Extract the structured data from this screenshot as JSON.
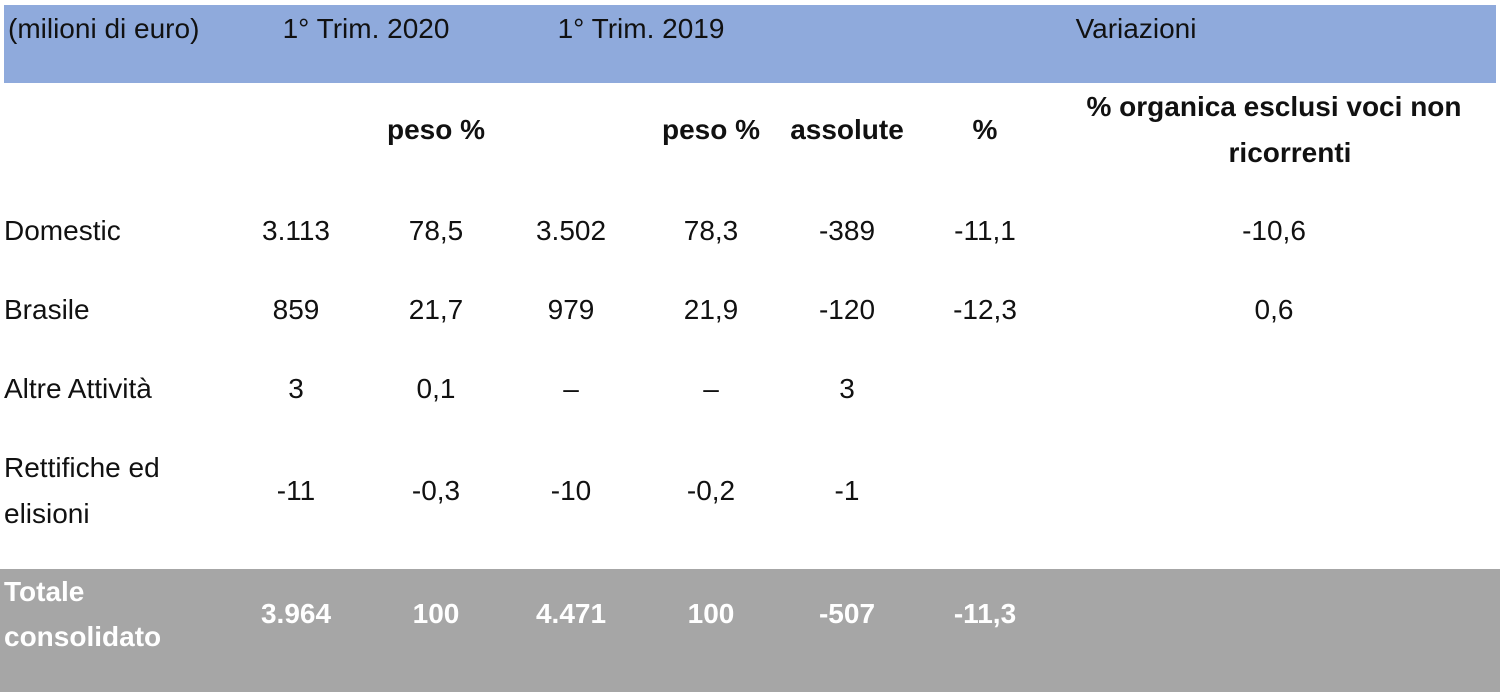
{
  "header": {
    "unit": "(milioni di euro)",
    "period1": "1° Trim. 2020",
    "period2": "1° Trim. 2019",
    "changes": "Variazioni"
  },
  "subheader": {
    "weight1": "peso %",
    "weight2": "peso %",
    "absolute": "assolute",
    "percent": "%",
    "organic_line1": "% organica esclusi voci non",
    "organic_line2": "ricorrenti"
  },
  "rows": [
    {
      "label_line1": "Domestic",
      "label_line2": "",
      "v2020": "3.113",
      "w2020": "78,5",
      "v2019": "3.502",
      "w2019": "78,3",
      "abs": "-389",
      "pct": "-11,1",
      "org": "-10,6"
    },
    {
      "label_line1": "Brasile",
      "label_line2": "",
      "v2020": "859",
      "w2020": "21,7",
      "v2019": "979",
      "w2019": "21,9",
      "abs": "-120",
      "pct": "-12,3",
      "org": "0,6"
    },
    {
      "label_line1": "Altre Attività",
      "label_line2": "",
      "v2020": "3",
      "w2020": "0,1",
      "v2019": "–",
      "w2019": "–",
      "abs": "3",
      "pct": "",
      "org": ""
    },
    {
      "label_line1": "Rettifiche ed",
      "label_line2": "elisioni",
      "v2020": "-11",
      "w2020": "-0,3",
      "v2019": "-10",
      "w2019": "-0,2",
      "abs": "-1",
      "pct": "",
      "org": ""
    }
  ],
  "total": {
    "label_line1": "Totale",
    "label_line2": "consolidato",
    "v2020": "3.964",
    "w2020": "100",
    "v2019": "4.471",
    "w2019": "100",
    "abs": "-507",
    "pct": "-11,3",
    "org": ""
  },
  "colors": {
    "header_bg": "#8faadc",
    "total_bg": "#a6a6a6",
    "total_text": "#ffffff"
  }
}
